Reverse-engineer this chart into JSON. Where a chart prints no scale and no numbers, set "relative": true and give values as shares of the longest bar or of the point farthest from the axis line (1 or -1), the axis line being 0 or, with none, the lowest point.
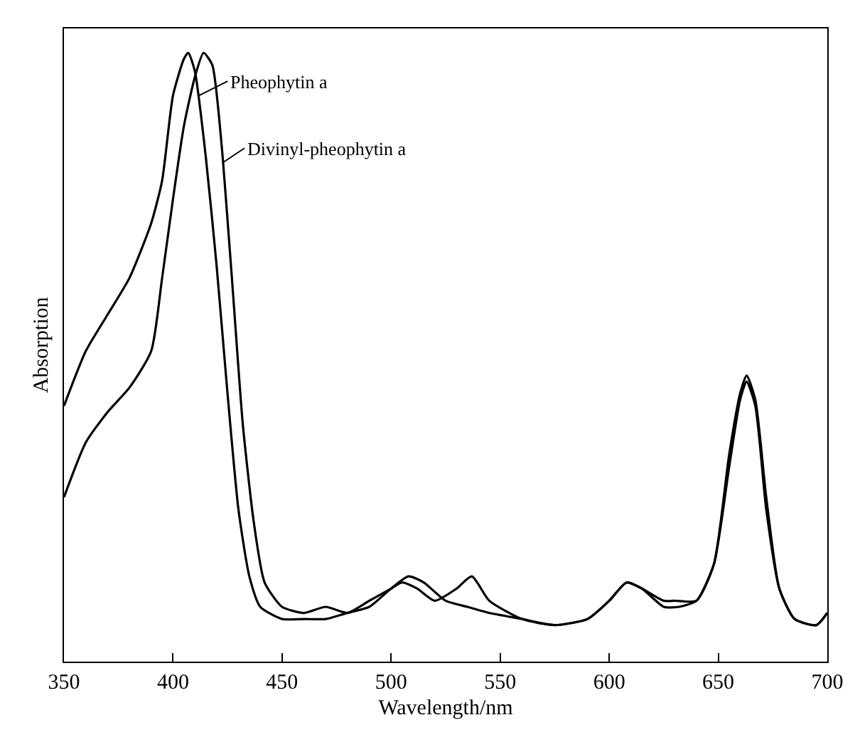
{
  "chart_data": {
    "type": "line",
    "relative": true,
    "xlabel": "Wavelength/nm",
    "ylabel": "Absorption",
    "xlim": [
      350,
      700
    ],
    "xticks": [
      350,
      400,
      450,
      500,
      550,
      600,
      650,
      700
    ],
    "marker": "none",
    "line_style": "solid",
    "series": [
      {
        "color": "#000000",
        "x": [
          350,
          360,
          370,
          380,
          390,
          395,
          400,
          405,
          407,
          410,
          415,
          420,
          425,
          430,
          435,
          440,
          450,
          460,
          470,
          480,
          490,
          500,
          508,
          515,
          525,
          535,
          545,
          560,
          575,
          590,
          600,
          608,
          615,
          625,
          632,
          640,
          648,
          655,
          660,
          663,
          667,
          672,
          678,
          685,
          695,
          700
        ],
        "values": [
          0.42,
          0.51,
          0.57,
          0.63,
          0.72,
          0.79,
          0.93,
          0.99,
          1,
          0.97,
          0.83,
          0.65,
          0.44,
          0.25,
          0.14,
          0.09,
          0.07,
          0.07,
          0.07,
          0.08,
          0.09,
          0.12,
          0.14,
          0.13,
          0.1,
          0.09,
          0.08,
          0.07,
          0.06,
          0.07,
          0.1,
          0.13,
          0.12,
          0.09,
          0.09,
          0.1,
          0.16,
          0.32,
          0.43,
          0.46,
          0.42,
          0.25,
          0.12,
          0.07,
          0.06,
          0.08
        ]
      },
      {
        "color": "#000000",
        "x": [
          350,
          360,
          370,
          380,
          390,
          395,
          400,
          405,
          410,
          414,
          418,
          422,
          427,
          432,
          437,
          442,
          450,
          460,
          470,
          480,
          490,
          500,
          505,
          512,
          520,
          530,
          537,
          545,
          560,
          575,
          590,
          600,
          608,
          615,
          625,
          630,
          640,
          648,
          655,
          660,
          663,
          667,
          672,
          678,
          685,
          695,
          700
        ],
        "values": [
          0.27,
          0.36,
          0.41,
          0.45,
          0.51,
          0.63,
          0.76,
          0.88,
          0.96,
          1,
          0.98,
          0.86,
          0.63,
          0.39,
          0.23,
          0.13,
          0.09,
          0.08,
          0.09,
          0.08,
          0.1,
          0.12,
          0.13,
          0.12,
          0.1,
          0.12,
          0.14,
          0.1,
          0.07,
          0.06,
          0.07,
          0.1,
          0.13,
          0.12,
          0.1,
          0.1,
          0.1,
          0.16,
          0.34,
          0.44,
          0.47,
          0.43,
          0.27,
          0.12,
          0.07,
          0.06,
          0.08
        ]
      }
    ],
    "annotations": [
      {
        "text": "Pheophytin a",
        "x": 412,
        "y": 0.93
      },
      {
        "text": "Divinyl-pheophytin a",
        "x": 423,
        "y": 0.82
      }
    ]
  }
}
